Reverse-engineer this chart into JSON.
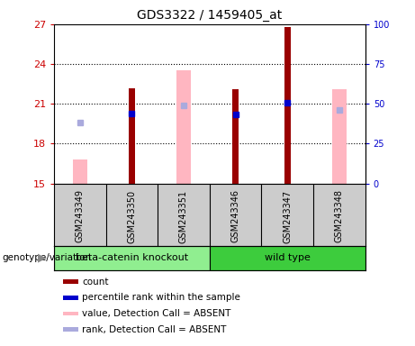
{
  "title": "GDS3322 / 1459405_at",
  "samples": [
    "GSM243349",
    "GSM243350",
    "GSM243351",
    "GSM243346",
    "GSM243347",
    "GSM243348"
  ],
  "groups": [
    "beta-catenin knockout",
    "beta-catenin knockout",
    "beta-catenin knockout",
    "wild type",
    "wild type",
    "wild type"
  ],
  "group_colors": {
    "beta-catenin knockout": "#90EE90",
    "wild type": "#3DCC3D"
  },
  "ylim_left": [
    15,
    27
  ],
  "ylim_right": [
    0,
    100
  ],
  "yticks_left": [
    15,
    18,
    21,
    24,
    27
  ],
  "yticks_right": [
    0,
    25,
    50,
    75,
    100
  ],
  "red_bars": {
    "GSM243350": 22.2,
    "GSM243346": 22.1,
    "GSM243347": 26.8
  },
  "pink_bars": {
    "GSM243349": 16.8,
    "GSM243351": 23.5,
    "GSM243348": 22.1
  },
  "blue_squares": {
    "GSM243350": 20.3,
    "GSM243346": 20.2,
    "GSM243347": 21.05
  },
  "light_blue_squares": {
    "GSM243349": 19.6,
    "GSM243351": 20.85,
    "GSM243348": 20.55
  },
  "red_color": "#990000",
  "pink_color": "#FFB6C1",
  "blue_color": "#0000CC",
  "light_blue_color": "#AAAADD",
  "left_tick_color": "#CC0000",
  "right_tick_color": "#0000CC",
  "gridline_y": [
    18,
    21,
    24
  ],
  "legend_items": [
    {
      "label": "count",
      "color": "#990000"
    },
    {
      "label": "percentile rank within the sample",
      "color": "#0000CC"
    },
    {
      "label": "value, Detection Call = ABSENT",
      "color": "#FFB6C1"
    },
    {
      "label": "rank, Detection Call = ABSENT",
      "color": "#AAAADD"
    }
  ],
  "genotype_label": "genotype/variation"
}
